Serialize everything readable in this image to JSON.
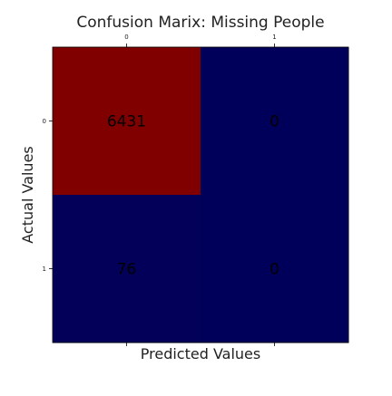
{
  "chart_data": {
    "type": "heatmap",
    "title": "Confusion Marix: Missing People",
    "xlabel": "Predicted Values",
    "ylabel": "Actual Values",
    "x_categories": [
      "0",
      "1"
    ],
    "y_categories": [
      "0",
      "1"
    ],
    "x_tick_position": "top",
    "values": [
      [
        6431,
        0
      ],
      [
        76,
        0
      ]
    ],
    "colormap": {
      "low": "#00005a",
      "high": "#800000"
    },
    "grid": false,
    "legend": "none"
  }
}
